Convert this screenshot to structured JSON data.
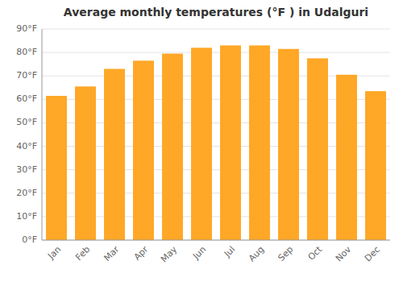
{
  "chart_data": {
    "type": "bar",
    "title": "Average monthly temperatures (°F ) in Udalguri",
    "categories": [
      "Jan",
      "Feb",
      "Mar",
      "Apr",
      "May",
      "Jun",
      "Jul",
      "Aug",
      "Sep",
      "Oct",
      "Nov",
      "Dec"
    ],
    "values": [
      61.5,
      65.5,
      73.0,
      76.5,
      79.5,
      82.0,
      83.0,
      83.0,
      81.5,
      77.5,
      70.5,
      63.5
    ],
    "color": "#FFA726",
    "ylim": [
      0,
      90
    ],
    "yticks": [
      {
        "value": 0,
        "label": "0°F"
      },
      {
        "value": 10,
        "label": "10°F"
      },
      {
        "value": 20,
        "label": "20°F"
      },
      {
        "value": 30,
        "label": "30°F"
      },
      {
        "value": 40,
        "label": "40°F"
      },
      {
        "value": 50,
        "label": "50°F"
      },
      {
        "value": 60,
        "label": "60°F"
      },
      {
        "value": 70,
        "label": "70°F"
      },
      {
        "value": 80,
        "label": "80°F"
      },
      {
        "value": 90,
        "label": "90°F"
      }
    ],
    "grid": true
  }
}
